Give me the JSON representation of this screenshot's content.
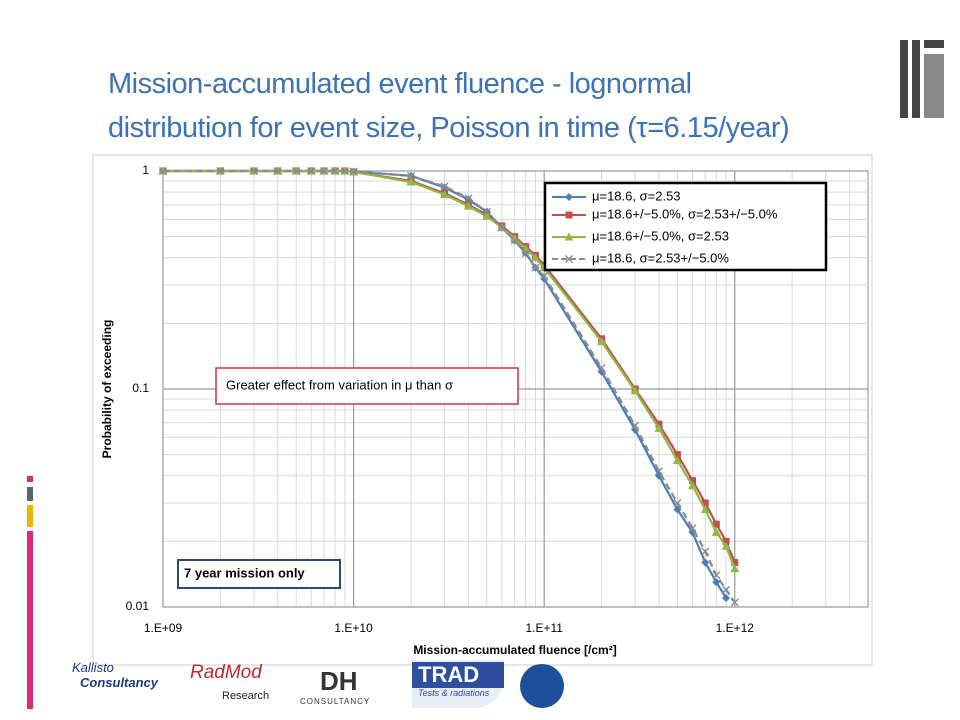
{
  "title": [
    "Mission-accumulated event fluence - lognormal",
    "distribution for event size, Poisson in time (τ=6.15/year)"
  ],
  "footer_logos": [
    "Kallisto",
    "Consultancy",
    "RadMod",
    "Research",
    "DH",
    "CONSULTANCY",
    "TRAD",
    "Tests & radiations"
  ],
  "chart_data": {
    "type": "line",
    "x_label": "Mission-accumulated  fluence [/cm²]",
    "y_label": "Probability  of exceeding",
    "annotations": [
      "Greater effect from variation in μ than σ",
      "7 year mission only"
    ],
    "log_x": true,
    "log_y": true,
    "grid": true,
    "minor_grid": true,
    "legend": "upper right",
    "xlim": [
      1000000000.0,
      5000000000000.0
    ],
    "xticks": [
      {
        "value": 1000000000.0,
        "label": "1.E+09"
      },
      {
        "value": 10000000000.0,
        "label": "1.E+10"
      },
      {
        "value": 100000000000.0,
        "label": "1.E+11"
      },
      {
        "value": 1000000000000.0,
        "label": "1.E+12"
      }
    ],
    "ylim": [
      0.01,
      1
    ],
    "yticks": [
      0.01,
      0.1,
      1
    ],
    "x": [
      1000000000.0,
      2000000000.0,
      3000000000.0,
      4000000000.0,
      5000000000.0,
      6000000000.0,
      7000000000.0,
      8000000000.0,
      9000000000.0,
      10000000000.0,
      20000000000.0,
      30000000000.0,
      40000000000.0,
      50000000000.0,
      60000000000.0,
      70000000000.0,
      80000000000.0,
      90000000000.0,
      100000000000.0,
      200000000000.0,
      300000000000.0,
      400000000000.0,
      500000000000.0,
      600000000000.0,
      700000000000.0,
      800000000000.0,
      900000000000.0,
      1000000000000.0
    ],
    "series": [
      {
        "name": "μ=18.6, σ=2.53",
        "color": "#4a7ebb",
        "marker": "diamond",
        "dash": false,
        "values": [
          1,
          1,
          1,
          1,
          1,
          1,
          1,
          1,
          1,
          0.995,
          0.95,
          0.84,
          0.74,
          0.65,
          0.55,
          0.48,
          0.42,
          0.36,
          0.32,
          0.12,
          0.065,
          0.04,
          0.028,
          0.022,
          0.016,
          0.013,
          0.011,
          null
        ]
      },
      {
        "name": "μ=18.6+/−5.0%, σ=2.53+/−5.0%",
        "color": "#c0504d",
        "marker": "square",
        "dash": false,
        "values": [
          1,
          1,
          1,
          1,
          1,
          1,
          1,
          1,
          1,
          0.99,
          0.9,
          0.79,
          0.7,
          0.63,
          0.56,
          0.5,
          0.45,
          0.41,
          0.37,
          0.17,
          0.1,
          0.069,
          0.05,
          0.038,
          0.03,
          0.024,
          0.02,
          0.016
        ]
      },
      {
        "name": "μ=18.6+/−5.0%, σ=2.53",
        "color": "#8fb844",
        "marker": "triangle",
        "dash": false,
        "values": [
          1,
          1,
          1,
          1,
          1,
          1,
          1,
          1,
          1,
          0.99,
          0.89,
          0.78,
          0.69,
          0.62,
          0.55,
          0.49,
          0.44,
          0.4,
          0.36,
          0.165,
          0.098,
          0.066,
          0.047,
          0.036,
          0.028,
          0.022,
          0.019,
          0.015
        ]
      },
      {
        "name": "μ=18.6, σ=2.53+/−5.0%",
        "color": "#8c8c8c",
        "marker": "x",
        "dash": true,
        "values": [
          1,
          1,
          1,
          1,
          1,
          1,
          1,
          1,
          1,
          0.995,
          0.95,
          0.85,
          0.75,
          0.65,
          0.55,
          0.48,
          0.42,
          0.36,
          0.33,
          0.125,
          0.068,
          0.042,
          0.03,
          0.023,
          0.018,
          0.014,
          0.012,
          0.0105
        ]
      }
    ]
  }
}
